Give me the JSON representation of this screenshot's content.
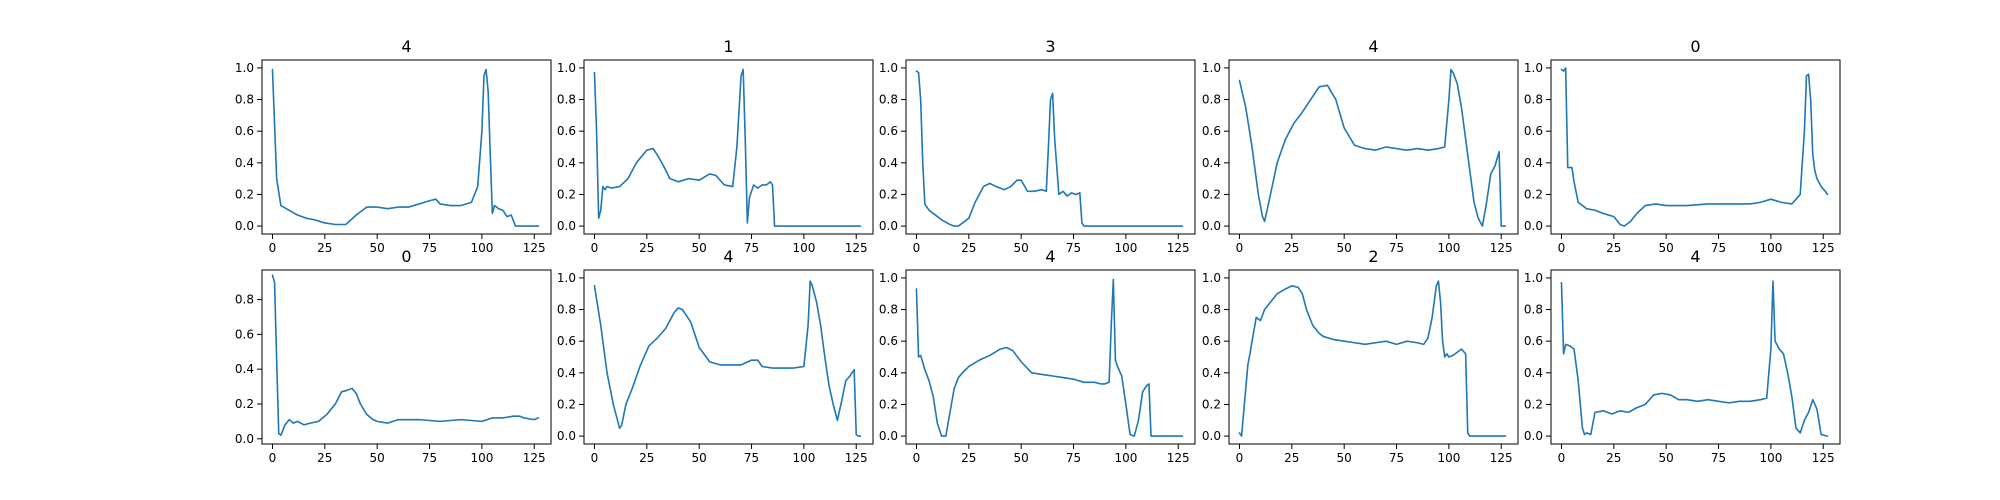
{
  "chart_data": [
    {
      "type": "line",
      "title": "4",
      "xlim": [
        -5,
        133
      ],
      "ylim": [
        -0.05,
        1.05
      ],
      "xticks": [
        0,
        25,
        50,
        75,
        100,
        125
      ],
      "yticks": [
        0.0,
        0.2,
        0.4,
        0.6,
        0.8,
        1.0
      ],
      "ytick_labels": [
        "0.0",
        "0.2",
        "0.4",
        "0.6",
        "0.8",
        "1.0"
      ],
      "x": [
        0,
        2,
        4,
        8,
        12,
        16,
        20,
        25,
        30,
        35,
        40,
        45,
        50,
        55,
        60,
        65,
        70,
        75,
        78,
        80,
        85,
        90,
        95,
        98,
        100,
        101,
        102,
        103,
        104,
        105,
        106,
        108,
        110,
        112,
        114,
        116,
        120,
        125,
        127
      ],
      "y": [
        0.99,
        0.3,
        0.13,
        0.1,
        0.07,
        0.05,
        0.04,
        0.02,
        0.01,
        0.01,
        0.07,
        0.12,
        0.12,
        0.11,
        0.12,
        0.12,
        0.14,
        0.16,
        0.17,
        0.14,
        0.13,
        0.13,
        0.15,
        0.25,
        0.6,
        0.95,
        0.99,
        0.85,
        0.45,
        0.08,
        0.13,
        0.11,
        0.1,
        0.06,
        0.07,
        0.0,
        0.0,
        0.0,
        0.0
      ]
    },
    {
      "type": "line",
      "title": "1",
      "xlim": [
        -5,
        133
      ],
      "ylim": [
        -0.05,
        1.05
      ],
      "xticks": [
        0,
        25,
        50,
        75,
        100,
        125
      ],
      "yticks": [
        0.0,
        0.2,
        0.4,
        0.6,
        0.8,
        1.0
      ],
      "ytick_labels": [
        "0.0",
        "0.2",
        "0.4",
        "0.6",
        "0.8",
        "1.0"
      ],
      "x": [
        0,
        1,
        2,
        3,
        4,
        5,
        6,
        8,
        12,
        16,
        20,
        25,
        28,
        30,
        33,
        36,
        40,
        45,
        50,
        55,
        58,
        62,
        66,
        68,
        70,
        71,
        72,
        73,
        74,
        76,
        78,
        80,
        82,
        84,
        85,
        86,
        88,
        100,
        115,
        127
      ],
      "y": [
        0.97,
        0.6,
        0.05,
        0.1,
        0.25,
        0.23,
        0.25,
        0.24,
        0.25,
        0.3,
        0.4,
        0.48,
        0.49,
        0.45,
        0.38,
        0.3,
        0.28,
        0.3,
        0.29,
        0.33,
        0.32,
        0.26,
        0.25,
        0.5,
        0.95,
        0.99,
        0.55,
        0.02,
        0.18,
        0.26,
        0.24,
        0.26,
        0.26,
        0.28,
        0.26,
        0.0,
        0.0,
        0.0,
        0.0,
        0.0
      ]
    },
    {
      "type": "line",
      "title": "3",
      "xlim": [
        -5,
        133
      ],
      "ylim": [
        -0.05,
        1.05
      ],
      "xticks": [
        0,
        25,
        50,
        75,
        100,
        125
      ],
      "yticks": [
        0.0,
        0.2,
        0.4,
        0.6,
        0.8,
        1.0
      ],
      "ytick_labels": [
        "0.0",
        "0.2",
        "0.4",
        "0.6",
        "0.8",
        "1.0"
      ],
      "x": [
        0,
        1,
        2,
        3,
        4,
        6,
        8,
        12,
        16,
        18,
        20,
        25,
        28,
        32,
        35,
        38,
        42,
        45,
        48,
        50,
        53,
        56,
        60,
        62,
        63,
        64,
        65,
        66,
        68,
        70,
        72,
        74,
        76,
        78,
        79,
        80,
        82,
        100,
        115,
        127
      ],
      "y": [
        0.98,
        0.97,
        0.8,
        0.4,
        0.14,
        0.1,
        0.08,
        0.04,
        0.01,
        0.0,
        0.0,
        0.05,
        0.15,
        0.25,
        0.27,
        0.25,
        0.23,
        0.25,
        0.29,
        0.29,
        0.22,
        0.22,
        0.23,
        0.22,
        0.5,
        0.8,
        0.84,
        0.55,
        0.2,
        0.22,
        0.19,
        0.21,
        0.2,
        0.21,
        0.02,
        0.0,
        0.0,
        0.0,
        0.0,
        0.0
      ]
    },
    {
      "type": "line",
      "title": "4",
      "xlim": [
        -5,
        133
      ],
      "ylim": [
        -0.05,
        1.05
      ],
      "xticks": [
        0,
        25,
        50,
        75,
        100,
        125
      ],
      "yticks": [
        0.0,
        0.2,
        0.4,
        0.6,
        0.8,
        1.0
      ],
      "ytick_labels": [
        "0.0",
        "0.2",
        "0.4",
        "0.6",
        "0.8",
        "1.0"
      ],
      "x": [
        0,
        3,
        6,
        9,
        11,
        12,
        14,
        18,
        22,
        26,
        30,
        34,
        38,
        42,
        46,
        50,
        55,
        60,
        65,
        70,
        75,
        80,
        85,
        90,
        95,
        98,
        100,
        101,
        102,
        104,
        106,
        108,
        110,
        112,
        114,
        116,
        118,
        120,
        122,
        124,
        125,
        126,
        127
      ],
      "y": [
        0.92,
        0.75,
        0.5,
        0.2,
        0.06,
        0.03,
        0.15,
        0.4,
        0.55,
        0.65,
        0.72,
        0.8,
        0.88,
        0.89,
        0.8,
        0.62,
        0.51,
        0.49,
        0.48,
        0.5,
        0.49,
        0.48,
        0.49,
        0.48,
        0.49,
        0.5,
        0.8,
        0.99,
        0.97,
        0.9,
        0.75,
        0.55,
        0.35,
        0.15,
        0.05,
        0.0,
        0.15,
        0.33,
        0.38,
        0.47,
        0.0,
        0.0,
        0.0
      ]
    },
    {
      "type": "line",
      "title": "0",
      "xlim": [
        -5,
        133
      ],
      "ylim": [
        -0.05,
        1.05
      ],
      "xticks": [
        0,
        25,
        50,
        75,
        100,
        125
      ],
      "yticks": [
        0.0,
        0.2,
        0.4,
        0.6,
        0.8,
        1.0
      ],
      "ytick_labels": [
        "0.0",
        "0.2",
        "0.4",
        "0.6",
        "0.8",
        "1.0"
      ],
      "x": [
        0,
        1,
        2,
        3,
        5,
        6,
        8,
        12,
        16,
        20,
        25,
        28,
        30,
        33,
        36,
        40,
        45,
        50,
        55,
        60,
        70,
        80,
        90,
        95,
        100,
        105,
        110,
        114,
        116,
        117,
        118,
        119,
        120,
        121,
        122,
        124,
        126,
        127
      ],
      "y": [
        0.99,
        0.98,
        1.0,
        0.37,
        0.37,
        0.28,
        0.15,
        0.11,
        0.1,
        0.08,
        0.06,
        0.01,
        0.0,
        0.03,
        0.08,
        0.13,
        0.14,
        0.13,
        0.13,
        0.13,
        0.14,
        0.14,
        0.14,
        0.15,
        0.17,
        0.15,
        0.14,
        0.2,
        0.6,
        0.95,
        0.96,
        0.8,
        0.45,
        0.35,
        0.3,
        0.25,
        0.22,
        0.2
      ]
    },
    {
      "type": "line",
      "title": "0",
      "xlim": [
        -5,
        133
      ],
      "ylim": [
        -0.03,
        0.97
      ],
      "xticks": [
        0,
        25,
        50,
        75,
        100,
        125
      ],
      "yticks": [
        0.0,
        0.2,
        0.4,
        0.6,
        0.8
      ],
      "ytick_labels": [
        "0.0",
        "0.2",
        "0.4",
        "0.6",
        "0.8"
      ],
      "x": [
        0,
        1,
        2,
        3,
        4,
        5,
        6,
        8,
        10,
        12,
        15,
        18,
        22,
        26,
        30,
        33,
        36,
        38,
        40,
        42,
        45,
        48,
        50,
        55,
        60,
        70,
        80,
        90,
        100,
        105,
        110,
        115,
        118,
        120,
        125,
        127
      ],
      "y": [
        0.94,
        0.9,
        0.45,
        0.03,
        0.02,
        0.05,
        0.08,
        0.11,
        0.09,
        0.1,
        0.08,
        0.09,
        0.1,
        0.14,
        0.2,
        0.27,
        0.28,
        0.29,
        0.26,
        0.2,
        0.14,
        0.11,
        0.1,
        0.09,
        0.11,
        0.11,
        0.1,
        0.11,
        0.1,
        0.12,
        0.12,
        0.13,
        0.13,
        0.12,
        0.11,
        0.12
      ]
    },
    {
      "type": "line",
      "title": "4",
      "xlim": [
        -5,
        133
      ],
      "ylim": [
        -0.05,
        1.05
      ],
      "xticks": [
        0,
        25,
        50,
        75,
        100,
        125
      ],
      "yticks": [
        0.0,
        0.2,
        0.4,
        0.6,
        0.8,
        1.0
      ],
      "ytick_labels": [
        "0.0",
        "0.2",
        "0.4",
        "0.6",
        "0.8",
        "1.0"
      ],
      "x": [
        0,
        3,
        6,
        9,
        12,
        13,
        15,
        18,
        22,
        26,
        30,
        34,
        38,
        40,
        42,
        46,
        50,
        55,
        60,
        65,
        70,
        75,
        78,
        80,
        85,
        90,
        95,
        100,
        102,
        103,
        104,
        106,
        108,
        110,
        112,
        114,
        116,
        118,
        120,
        122,
        124,
        125,
        126,
        127
      ],
      "y": [
        0.95,
        0.7,
        0.4,
        0.2,
        0.05,
        0.07,
        0.2,
        0.3,
        0.45,
        0.57,
        0.62,
        0.68,
        0.78,
        0.81,
        0.8,
        0.72,
        0.56,
        0.47,
        0.45,
        0.45,
        0.45,
        0.48,
        0.48,
        0.44,
        0.43,
        0.43,
        0.43,
        0.44,
        0.7,
        0.98,
        0.95,
        0.85,
        0.7,
        0.5,
        0.32,
        0.2,
        0.1,
        0.22,
        0.35,
        0.38,
        0.42,
        0.01,
        0.0,
        0.0
      ]
    },
    {
      "type": "line",
      "title": "4",
      "xlim": [
        -5,
        133
      ],
      "ylim": [
        -0.05,
        1.05
      ],
      "xticks": [
        0,
        25,
        50,
        75,
        100,
        125
      ],
      "yticks": [
        0.0,
        0.2,
        0.4,
        0.6,
        0.8,
        1.0
      ],
      "ytick_labels": [
        "0.0",
        "0.2",
        "0.4",
        "0.6",
        "0.8",
        "1.0"
      ],
      "x": [
        0,
        1,
        2,
        4,
        6,
        8,
        10,
        12,
        14,
        16,
        18,
        20,
        22,
        25,
        30,
        35,
        40,
        43,
        46,
        50,
        55,
        60,
        65,
        70,
        75,
        80,
        85,
        88,
        90,
        92,
        93,
        94,
        95,
        96,
        98,
        100,
        102,
        104,
        106,
        108,
        110,
        111,
        112,
        113,
        115,
        120,
        127
      ],
      "y": [
        0.93,
        0.5,
        0.51,
        0.42,
        0.35,
        0.25,
        0.08,
        0.0,
        0.0,
        0.15,
        0.3,
        0.37,
        0.4,
        0.44,
        0.48,
        0.51,
        0.55,
        0.56,
        0.54,
        0.47,
        0.4,
        0.39,
        0.38,
        0.37,
        0.36,
        0.34,
        0.34,
        0.33,
        0.33,
        0.34,
        0.7,
        0.99,
        0.48,
        0.44,
        0.38,
        0.2,
        0.01,
        0.0,
        0.1,
        0.28,
        0.32,
        0.33,
        0.0,
        0.0,
        0.0,
        0.0,
        0.0
      ]
    },
    {
      "type": "line",
      "title": "2",
      "xlim": [
        -5,
        133
      ],
      "ylim": [
        -0.05,
        1.05
      ],
      "xticks": [
        0,
        25,
        50,
        75,
        100,
        125
      ],
      "yticks": [
        0.0,
        0.2,
        0.4,
        0.6,
        0.8,
        1.0
      ],
      "ytick_labels": [
        "0.0",
        "0.2",
        "0.4",
        "0.6",
        "0.8",
        "1.0"
      ],
      "x": [
        0,
        1,
        2,
        3,
        4,
        5,
        6,
        8,
        10,
        12,
        15,
        18,
        22,
        25,
        28,
        30,
        32,
        35,
        38,
        40,
        45,
        50,
        55,
        60,
        65,
        70,
        75,
        80,
        85,
        88,
        90,
        92,
        94,
        95,
        96,
        97,
        98,
        99,
        100,
        102,
        104,
        106,
        108,
        109,
        110,
        115,
        120,
        127
      ],
      "y": [
        0.02,
        0.0,
        0.15,
        0.3,
        0.45,
        0.52,
        0.6,
        0.75,
        0.73,
        0.8,
        0.85,
        0.9,
        0.93,
        0.95,
        0.94,
        0.9,
        0.8,
        0.7,
        0.65,
        0.63,
        0.61,
        0.6,
        0.59,
        0.58,
        0.59,
        0.6,
        0.58,
        0.6,
        0.59,
        0.58,
        0.62,
        0.75,
        0.95,
        0.98,
        0.85,
        0.6,
        0.5,
        0.52,
        0.5,
        0.51,
        0.53,
        0.55,
        0.52,
        0.02,
        0.0,
        0.0,
        0.0,
        0.0
      ]
    },
    {
      "type": "line",
      "title": "4",
      "xlim": [
        -5,
        133
      ],
      "ylim": [
        -0.05,
        1.05
      ],
      "xticks": [
        0,
        25,
        50,
        75,
        100,
        125
      ],
      "yticks": [
        0.0,
        0.2,
        0.4,
        0.6,
        0.8,
        1.0
      ],
      "ytick_labels": [
        "0.0",
        "0.2",
        "0.4",
        "0.6",
        "0.8",
        "1.0"
      ],
      "x": [
        0,
        1,
        2,
        4,
        6,
        8,
        10,
        11,
        12,
        14,
        16,
        20,
        24,
        28,
        32,
        36,
        40,
        44,
        48,
        52,
        56,
        60,
        65,
        70,
        75,
        80,
        85,
        90,
        95,
        98,
        100,
        101,
        102,
        104,
        106,
        108,
        110,
        112,
        114,
        116,
        118,
        120,
        122,
        124,
        127
      ],
      "y": [
        0.97,
        0.52,
        0.58,
        0.57,
        0.55,
        0.35,
        0.05,
        0.01,
        0.02,
        0.01,
        0.15,
        0.16,
        0.14,
        0.16,
        0.15,
        0.18,
        0.2,
        0.26,
        0.27,
        0.26,
        0.23,
        0.23,
        0.22,
        0.23,
        0.22,
        0.21,
        0.22,
        0.22,
        0.23,
        0.24,
        0.55,
        0.98,
        0.6,
        0.55,
        0.52,
        0.4,
        0.25,
        0.05,
        0.02,
        0.1,
        0.15,
        0.23,
        0.17,
        0.01,
        0.0
      ]
    }
  ]
}
